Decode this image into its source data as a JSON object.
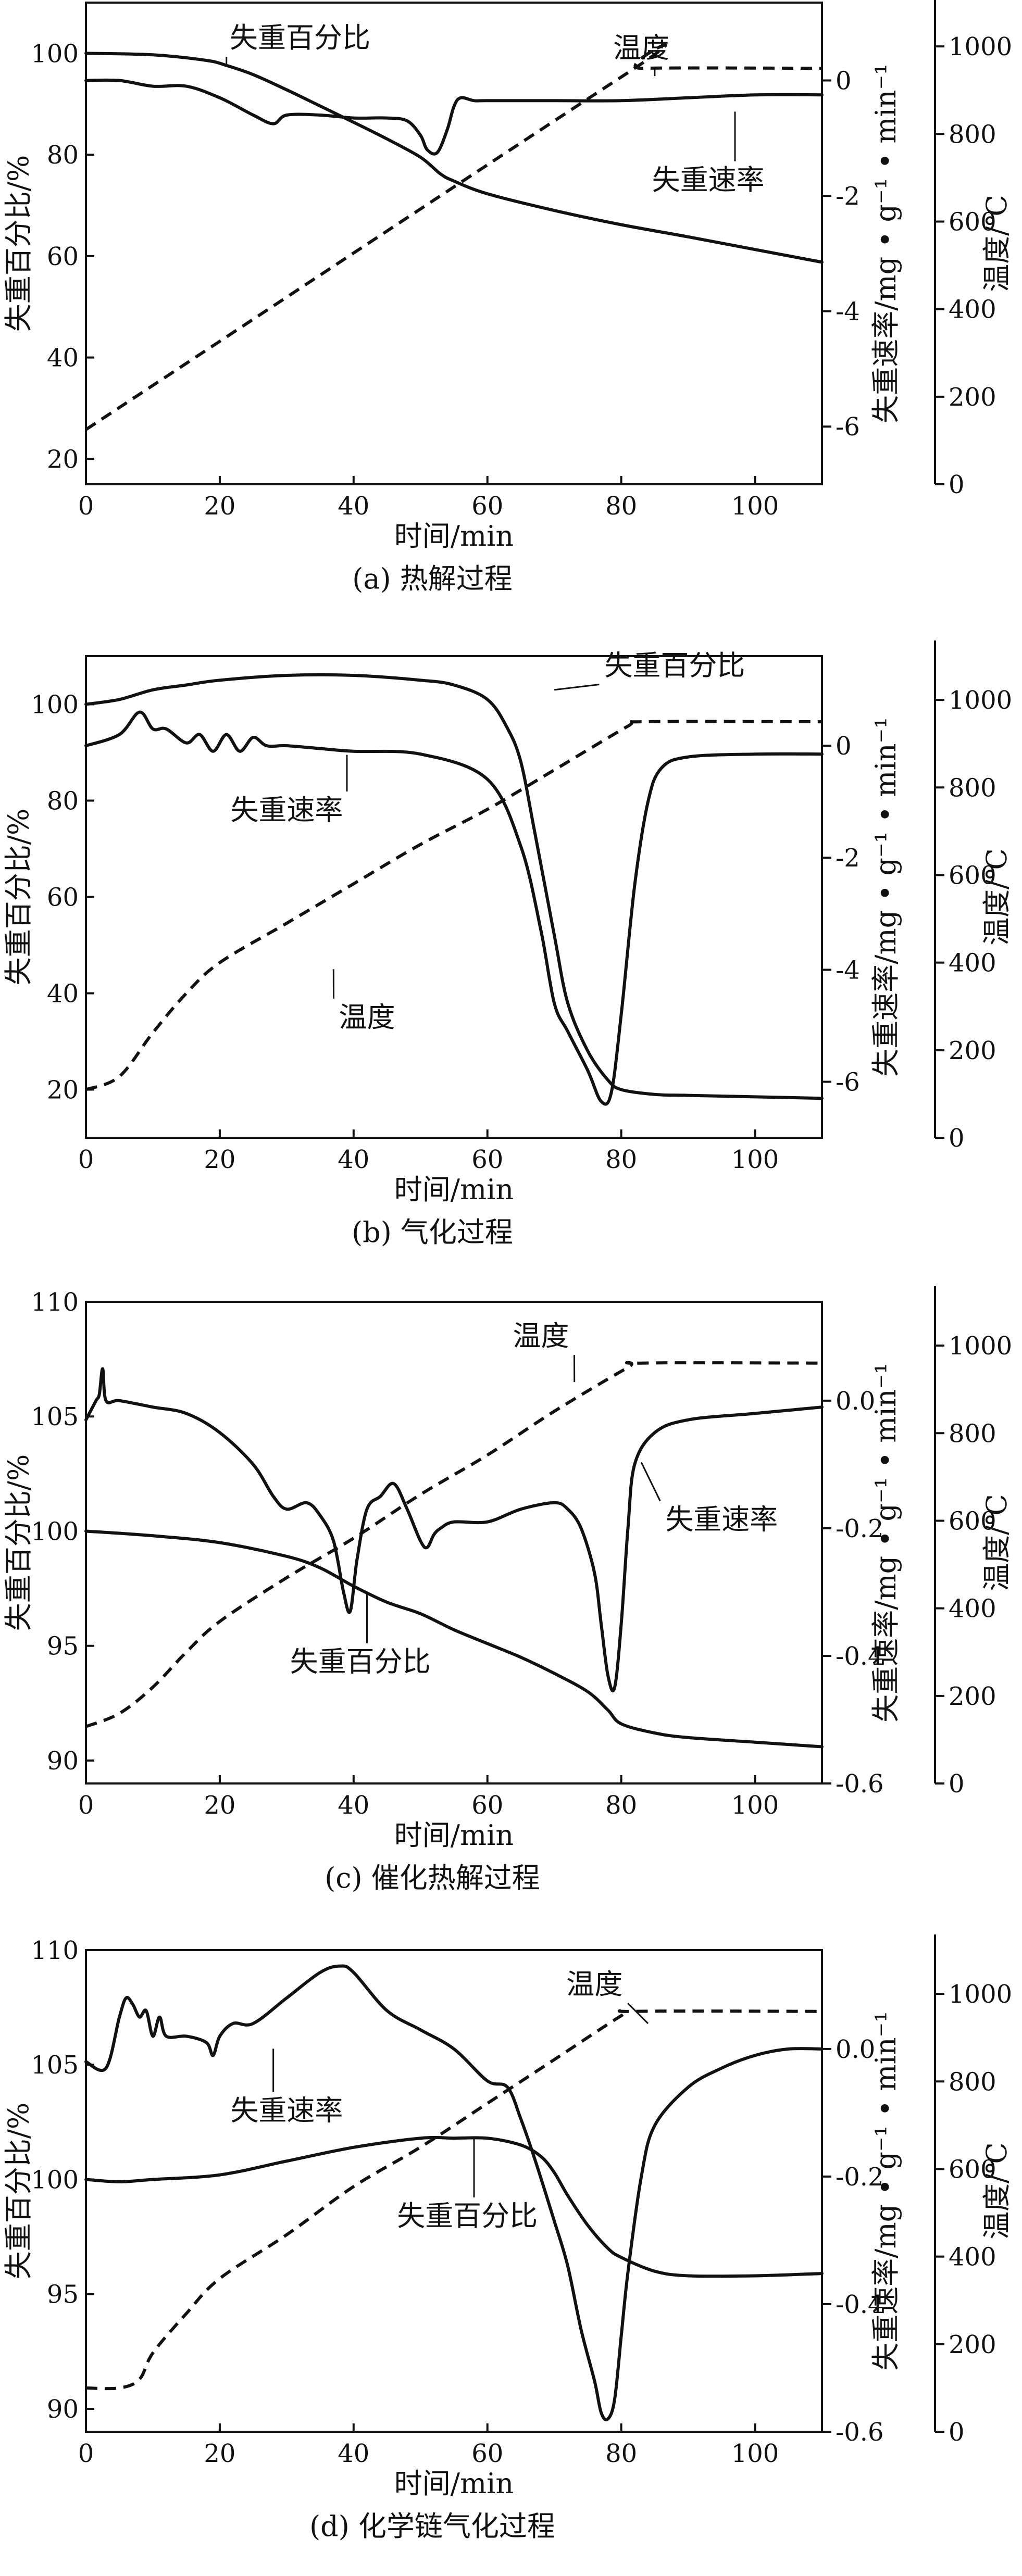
{
  "chart_data": [
    {
      "id": "a",
      "type": "line",
      "caption": "(a) 热解过程",
      "xlabel": "时间/min",
      "ylabel_left": "失重百分比/%",
      "ylabel_right1": "失重速率/mg • g⁻¹ • min⁻¹",
      "ylabel_right2": "温度/℃",
      "xlim": [
        0,
        110
      ],
      "xticks": [
        0,
        20,
        40,
        60,
        80,
        100
      ],
      "xtick_labels": [
        "0",
        "20",
        "40",
        "60",
        "80",
        "100"
      ],
      "ylim_left": [
        15,
        110
      ],
      "yticks_left": [
        20,
        40,
        60,
        80,
        100
      ],
      "ytick_labels_left": [
        "20",
        "40",
        "60",
        "80",
        "100"
      ],
      "ylim_right1": [
        -7.0,
        1.35
      ],
      "yticks_right1": [
        0,
        -2,
        -4,
        -6
      ],
      "ytick_labels_right1": [
        "0",
        "-2",
        "-4",
        "-6"
      ],
      "ylim_right2": [
        0,
        1100
      ],
      "yticks_right2": [
        0,
        200,
        400,
        600,
        800,
        1000
      ],
      "ytick_labels_right2": [
        "0",
        "200",
        "400",
        "600",
        "800",
        "1000"
      ],
      "series": [
        {
          "name": "失重百分比",
          "axis": "left",
          "dashed": false,
          "x": [
            0,
            10,
            18,
            21,
            25,
            30,
            35,
            40,
            45,
            50,
            53,
            55,
            60,
            70,
            80,
            90,
            100,
            110
          ],
          "y": [
            100,
            99.7,
            98.6,
            97.6,
            95.8,
            92.8,
            89.6,
            86.4,
            83.1,
            79.5,
            76.2,
            74.8,
            72.3,
            69,
            66.2,
            63.8,
            61.3,
            58.8
          ]
        },
        {
          "name": "失重速率",
          "axis": "right1",
          "dashed": false,
          "x": [
            0,
            5,
            10,
            15,
            20,
            25,
            28,
            30,
            35,
            40,
            45,
            48,
            50,
            51,
            52.5,
            54,
            55,
            56,
            58,
            60,
            70,
            80,
            90,
            100,
            110
          ],
          "y": [
            0,
            0,
            -0.1,
            -0.1,
            -0.3,
            -0.6,
            -0.75,
            -0.6,
            -0.6,
            -0.65,
            -0.65,
            -0.7,
            -0.95,
            -1.2,
            -1.25,
            -0.85,
            -0.45,
            -0.3,
            -0.35,
            -0.35,
            -0.35,
            -0.35,
            -0.3,
            -0.25,
            -0.25
          ]
        },
        {
          "name": "温度",
          "axis": "right2",
          "dashed": true,
          "x": [
            0,
            81,
            83,
            110
          ],
          "y": [
            125,
            940,
            950,
            950
          ]
        }
      ],
      "annotations": [
        {
          "text": "失重百分比",
          "series": "失重百分比",
          "text_x": 32,
          "text_y": 103,
          "point_x": 21,
          "point_y": 97.6
        },
        {
          "text": "温度",
          "series": "温度",
          "text_x": 83,
          "text_y": 101,
          "point_x": 85,
          "point_y": 95.5
        },
        {
          "text": "失重速率",
          "series": "失重速率",
          "text_x": 93,
          "text_y": 75,
          "point_x": 97,
          "point_y": 88.5
        }
      ]
    },
    {
      "id": "b",
      "type": "line",
      "caption": "(b) 气化过程",
      "xlabel": "时间/min",
      "ylabel_left": "失重百分比/%",
      "ylabel_right1": "失重速率/mg • g⁻¹ • min⁻¹",
      "ylabel_right2": "温度/℃",
      "xlim": [
        0,
        110
      ],
      "xticks": [
        0,
        20,
        40,
        60,
        80,
        100
      ],
      "xtick_labels": [
        "0",
        "20",
        "40",
        "60",
        "80",
        "100"
      ],
      "ylim_left": [
        10,
        110
      ],
      "yticks_left": [
        20,
        40,
        60,
        80,
        100
      ],
      "ytick_labels_left": [
        "20",
        "40",
        "60",
        "80",
        "100"
      ],
      "ylim_right1": [
        -7.0,
        1.6
      ],
      "yticks_right1": [
        0,
        -2,
        -4,
        -6
      ],
      "ytick_labels_right1": [
        "0",
        "-2",
        "-4",
        "-6"
      ],
      "ylim_right2": [
        0,
        1100
      ],
      "yticks_right2": [
        0,
        200,
        400,
        600,
        800,
        1000
      ],
      "ytick_labels_right2": [
        "0",
        "200",
        "400",
        "600",
        "800",
        "1000"
      ],
      "series": [
        {
          "name": "失重百分比",
          "axis": "left",
          "dashed": false,
          "x": [
            0,
            5,
            10,
            15,
            20,
            30,
            40,
            50,
            55,
            60,
            63,
            65,
            67,
            70,
            72,
            75,
            78,
            80,
            85,
            90,
            100,
            110
          ],
          "y": [
            100,
            101,
            103,
            104,
            105,
            106,
            106,
            105,
            104,
            101,
            95,
            88,
            74,
            52,
            38,
            28,
            22,
            20,
            19,
            18.8,
            18.5,
            18.2
          ]
        },
        {
          "name": "失重速率",
          "axis": "right1",
          "dashed": false,
          "x": [
            0,
            5,
            8,
            10,
            12,
            15,
            17,
            19,
            21,
            23,
            25,
            27,
            30,
            35,
            40,
            50,
            60,
            65,
            68,
            70,
            72,
            75,
            77,
            78.5,
            80,
            82,
            84,
            86,
            90,
            100,
            110
          ],
          "y": [
            0,
            0.2,
            0.6,
            0.3,
            0.3,
            0.05,
            0.2,
            -0.1,
            0.2,
            -0.1,
            0.15,
            0,
            0,
            -0.05,
            -0.1,
            -0.15,
            -0.6,
            -1.8,
            -3.3,
            -4.6,
            -5.1,
            -5.8,
            -6.35,
            -6.2,
            -4.8,
            -2.5,
            -1.0,
            -0.4,
            -0.2,
            -0.15,
            -0.15
          ]
        },
        {
          "name": "温度",
          "axis": "right2",
          "dashed": true,
          "x": [
            0,
            5,
            10,
            15,
            20,
            30,
            40,
            50,
            60,
            70,
            81,
            83,
            110
          ],
          "y": [
            110,
            140,
            240,
            330,
            400,
            490,
            580,
            670,
            750,
            840,
            940,
            950,
            950
          ]
        }
      ],
      "annotations": [
        {
          "text": "失重百分比",
          "series": "失重百分比",
          "text_x": 88,
          "text_y": 108,
          "point_x": 70,
          "point_y": 103
        },
        {
          "text": "失重速率",
          "series": "失重速率",
          "text_x": 30,
          "text_y": 78,
          "point_x": 39,
          "point_y": 89.5
        },
        {
          "text": "温度",
          "series": "温度",
          "text_x": 42,
          "text_y": 35,
          "point_x": 37,
          "point_y": 45
        }
      ]
    },
    {
      "id": "c",
      "type": "line",
      "caption": "(c) 催化热解过程",
      "xlabel": "时间/min",
      "ylabel_left": "失重百分比/%",
      "ylabel_right1": "失重速率/mg • g⁻¹ • min⁻¹",
      "ylabel_right2": "温度/℃",
      "xlim": [
        0,
        110
      ],
      "xticks": [
        0,
        20,
        40,
        60,
        80,
        100
      ],
      "xtick_labels": [
        "0",
        "20",
        "40",
        "60",
        "80",
        "100"
      ],
      "ylim_left": [
        89,
        110
      ],
      "yticks_left": [
        90,
        95,
        100,
        105,
        110
      ],
      "ytick_labels_left": [
        "90",
        "95",
        "100",
        "105",
        "110"
      ],
      "ylim_right1": [
        -0.6,
        0.155
      ],
      "yticks_right1": [
        0.0,
        -0.2,
        -0.4,
        -0.6
      ],
      "ytick_labels_right1": [
        "0.0",
        "-0.2",
        "-0.4",
        "-0.6"
      ],
      "ylim_right2": [
        0,
        1100
      ],
      "yticks_right2": [
        0,
        200,
        400,
        600,
        800,
        1000
      ],
      "ytick_labels_right2": [
        "0",
        "200",
        "400",
        "600",
        "800",
        "1000"
      ],
      "series": [
        {
          "name": "失重百分比",
          "axis": "left",
          "dashed": false,
          "x": [
            0,
            10,
            20,
            30,
            35,
            40,
            45,
            50,
            55,
            60,
            65,
            70,
            75,
            78,
            80,
            85,
            90,
            100,
            110
          ],
          "y": [
            100,
            99.8,
            99.5,
            98.9,
            98.4,
            97.6,
            96.9,
            96.4,
            95.7,
            95.1,
            94.5,
            93.8,
            93,
            92.2,
            91.6,
            91.2,
            91,
            90.8,
            90.6
          ]
        },
        {
          "name": "失重速率",
          "axis": "right1",
          "dashed": false,
          "x": [
            0,
            1.5,
            2,
            2.5,
            3,
            5,
            10,
            15,
            20,
            25,
            28,
            30,
            33,
            35,
            37,
            38.5,
            39.5,
            40.5,
            42,
            44,
            46,
            48,
            50,
            51,
            52,
            53,
            55,
            60,
            65,
            70,
            72,
            74,
            76,
            77,
            78,
            79,
            80,
            81,
            82,
            85,
            90,
            100,
            110
          ],
          "y": [
            -0.03,
            0,
            0.01,
            0.05,
            0.0,
            0.0,
            -0.01,
            -0.02,
            -0.05,
            -0.1,
            -0.15,
            -0.17,
            -0.16,
            -0.18,
            -0.22,
            -0.3,
            -0.33,
            -0.25,
            -0.17,
            -0.15,
            -0.13,
            -0.17,
            -0.22,
            -0.23,
            -0.21,
            -0.2,
            -0.19,
            -0.19,
            -0.17,
            -0.16,
            -0.17,
            -0.2,
            -0.27,
            -0.35,
            -0.43,
            -0.45,
            -0.35,
            -0.2,
            -0.1,
            -0.05,
            -0.03,
            -0.02,
            -0.01
          ]
        },
        {
          "name": "温度",
          "axis": "right2",
          "dashed": true,
          "x": [
            0,
            5,
            10,
            15,
            20,
            30,
            40,
            50,
            60,
            70,
            81,
            83,
            110
          ],
          "y": [
            130,
            160,
            220,
            300,
            370,
            470,
            560,
            660,
            750,
            850,
            950,
            960,
            960
          ]
        }
      ],
      "annotations": [
        {
          "text": "温度",
          "series": "温度",
          "text_x": 68,
          "text_y": 108.5,
          "point_x": 73,
          "point_y": 106.5
        },
        {
          "text": "失重速率",
          "series": "失重速率",
          "text_x": 95,
          "text_y": 100.5,
          "point_x": 83,
          "point_y": 103
        },
        {
          "text": "失重百分比",
          "series": "失重百分比",
          "text_x": 41,
          "text_y": 94.3,
          "point_x": 42,
          "point_y": 97.3
        }
      ]
    },
    {
      "id": "d",
      "type": "line",
      "caption": "(d) 化学链气化过程",
      "xlabel": "时间/min",
      "ylabel_left": "失重百分比/%",
      "ylabel_right1": "失重速率/mg • g⁻¹ • min⁻¹",
      "ylabel_right2": "温度/℃",
      "xlim": [
        0,
        110
      ],
      "xticks": [
        0,
        20,
        40,
        60,
        80,
        100
      ],
      "xtick_labels": [
        "0",
        "20",
        "40",
        "60",
        "80",
        "100"
      ],
      "ylim_left": [
        89,
        110
      ],
      "yticks_left": [
        90,
        95,
        100,
        105,
        110
      ],
      "ytick_labels_left": [
        "90",
        "95",
        "100",
        "105",
        "110"
      ],
      "ylim_right1": [
        -0.6,
        0.155
      ],
      "yticks_right1": [
        0.0,
        -0.2,
        -0.4,
        -0.6
      ],
      "ytick_labels_right1": [
        "0.0",
        "-0.2",
        "-0.4",
        "-0.6"
      ],
      "ylim_right2": [
        0,
        1100
      ],
      "yticks_right2": [
        0,
        200,
        400,
        600,
        800,
        1000
      ],
      "ytick_labels_right2": [
        "0",
        "200",
        "400",
        "600",
        "800",
        "1000"
      ],
      "series": [
        {
          "name": "失重百分比",
          "axis": "left",
          "dashed": false,
          "x": [
            0,
            5,
            10,
            20,
            30,
            40,
            50,
            55,
            60,
            65,
            68,
            70,
            72,
            75,
            78,
            80,
            85,
            90,
            100,
            110
          ],
          "y": [
            100,
            99.9,
            100,
            100.2,
            100.8,
            101.4,
            101.8,
            101.8,
            101.8,
            101.5,
            101,
            100.3,
            99.3,
            98,
            97,
            96.6,
            96,
            95.8,
            95.8,
            95.9
          ]
        },
        {
          "name": "失重速率",
          "axis": "right1",
          "dashed": false,
          "x": [
            0,
            3,
            5,
            6,
            7,
            8,
            9,
            10,
            11,
            12,
            15,
            18,
            19,
            20,
            22,
            25,
            30,
            35,
            38,
            40,
            45,
            50,
            55,
            60,
            63,
            65,
            67,
            70,
            72,
            74,
            76,
            77,
            78,
            79,
            80,
            81,
            83,
            85,
            90,
            95,
            100,
            105,
            110
          ],
          "y": [
            -0.02,
            -0.03,
            0.05,
            0.08,
            0.07,
            0.05,
            0.06,
            0.02,
            0.05,
            0.02,
            0.02,
            0.01,
            -0.01,
            0.02,
            0.04,
            0.04,
            0.08,
            0.12,
            0.13,
            0.12,
            0.06,
            0.03,
            0.0,
            -0.05,
            -0.06,
            -0.11,
            -0.17,
            -0.27,
            -0.34,
            -0.44,
            -0.52,
            -0.57,
            -0.58,
            -0.55,
            -0.45,
            -0.35,
            -0.2,
            -0.12,
            -0.06,
            -0.03,
            -0.01,
            0.0,
            0.0
          ]
        },
        {
          "name": "温度",
          "axis": "right2",
          "dashed": true,
          "x": [
            0,
            5,
            8,
            10,
            15,
            20,
            30,
            40,
            50,
            60,
            70,
            80,
            82,
            110
          ],
          "y": [
            100,
            100,
            120,
            180,
            270,
            350,
            450,
            560,
            650,
            750,
            850,
            950,
            960,
            960
          ]
        }
      ],
      "annotations": [
        {
          "text": "温度",
          "series": "温度",
          "text_x": 76,
          "text_y": 108.5,
          "point_x": 84,
          "point_y": 106.8
        },
        {
          "text": "失重速率",
          "series": "失重速率",
          "text_x": 30,
          "text_y": 103,
          "point_x": 28,
          "point_y": 105.7
        },
        {
          "text": "失重百分比",
          "series": "失重百分比",
          "text_x": 57,
          "text_y": 98.4,
          "point_x": 58,
          "point_y": 101.8
        }
      ]
    }
  ]
}
